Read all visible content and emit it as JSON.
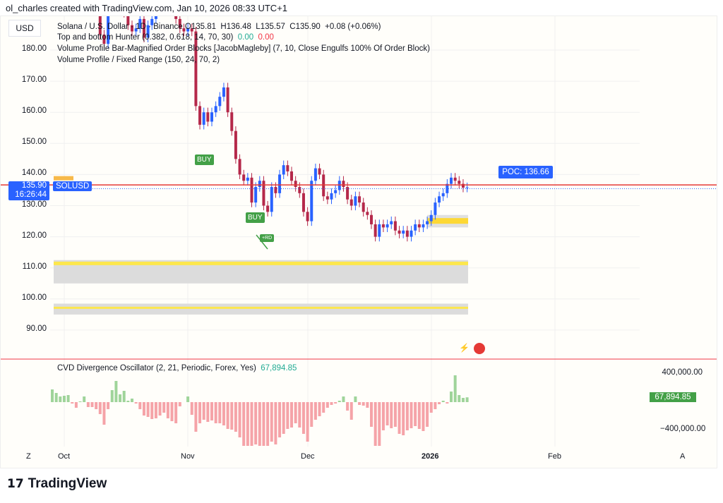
{
  "header": "ol_charles created with TradingView.com, Jan 10, 2026 08:33 UTC+1",
  "currency": "USD",
  "legend": {
    "symbol": "Solana / U.S. Dollar · 1D · Binance",
    "open": "O135.81",
    "high": "H136.48",
    "low": "L135.57",
    "close": "C135.90",
    "change": "+0.08 (+0.06%)",
    "ind1": "Top and bottom Hunter (0.382, 0.618, 14, 70, 30)",
    "ind1_v1": "0.00",
    "ind1_v2": "0.00",
    "ind2": "Volume Profile Bar-Magnified Order Blocks [JacobMagleby] (7, 10, Close Engulfs 100% Of Order Block)",
    "ind3": "Volume Profile / Fixed Range (150, 24, 70, 2)"
  },
  "price_axis": [
    "180.00",
    "170.00",
    "160.00",
    "150.00",
    "140.00",
    "130.00",
    "120.00",
    "110.00",
    "100.00",
    "90.00"
  ],
  "last_price": {
    "value": "135.90",
    "countdown": "16:26:44",
    "symbol": "SOLUSD"
  },
  "poc": {
    "label": "POC: 136.66",
    "value": 136.66
  },
  "signals": {
    "buy1": "BUY",
    "buy2": "BUY",
    "rd": "+RD"
  },
  "cvd": {
    "title": "CVD Divergence Oscillator (2, 21, Periodic, Forex, Yes)",
    "value": "67,894.85",
    "axis": [
      "400,000.00",
      "−400,000.00"
    ]
  },
  "time_axis": {
    "z": "Z",
    "labels": [
      "Oct",
      "Nov",
      "Dec",
      "2026",
      "Feb"
    ],
    "a": "A"
  },
  "brand": "TradingView",
  "colors": {
    "up": "#2962ff",
    "down": "#b5284a",
    "cvd_pos": "#9fd49a",
    "cvd_neg": "#f5a3a8",
    "poc": "#e53935"
  },
  "chart_data": {
    "type": "candlestick",
    "start_date": "2025-09-28",
    "close": [
      205,
      208,
      210,
      215,
      222,
      228,
      230,
      232,
      228,
      222,
      218,
      212,
      185,
      182,
      195,
      200,
      204,
      198,
      192,
      188,
      186,
      187,
      190,
      184,
      188,
      190,
      195,
      198,
      200,
      196,
      198,
      190,
      187,
      186,
      187,
      186,
      162,
      156,
      160,
      157,
      160,
      162,
      165,
      168,
      160,
      154,
      145,
      140,
      138,
      139,
      131,
      136,
      138,
      130,
      128,
      136,
      134,
      140,
      143,
      141,
      138,
      136,
      134,
      128,
      125,
      138,
      142,
      140,
      133,
      132,
      134,
      135,
      138,
      136,
      132,
      130,
      133,
      131,
      128,
      127,
      124,
      120,
      124,
      123,
      124,
      125,
      122,
      121,
      122,
      120,
      122,
      124,
      123,
      124,
      125,
      127,
      131,
      133,
      134,
      137,
      139,
      138,
      137,
      135.8,
      135.9
    ],
    "cvd": [
      180000,
      130000,
      80000,
      90000,
      100000,
      -20000,
      -80000,
      10000,
      80000,
      -70000,
      -70000,
      -100000,
      -170000,
      -320000,
      -100000,
      170000,
      300000,
      110000,
      160000,
      20000,
      50000,
      -20000,
      -100000,
      -190000,
      -210000,
      -240000,
      -230000,
      -190000,
      -150000,
      -230000,
      -270000,
      -300000,
      -60000,
      0,
      80000,
      -180000,
      -420000,
      -300000,
      -250000,
      -280000,
      -260000,
      -300000,
      -300000,
      -330000,
      -380000,
      -390000,
      -420000,
      -500000,
      -620000,
      -620000,
      -620000,
      -600000,
      -620000,
      -620000,
      -620000,
      -560000,
      -600000,
      -500000,
      -450000,
      -380000,
      -360000,
      -300000,
      -360000,
      -450000,
      -560000,
      -350000,
      -250000,
      -200000,
      -150000,
      -80000,
      -40000,
      -20000,
      20000,
      80000,
      -120000,
      -250000,
      80000,
      -40000,
      -50000,
      -80000,
      -350000,
      -620000,
      -620000,
      -400000,
      -330000,
      -370000,
      -350000,
      -450000,
      -470000,
      -400000,
      -370000,
      -340000,
      -380000,
      -410000,
      -350000,
      -150000,
      -100000,
      -30000,
      20000,
      -20000,
      150000,
      380000,
      100000,
      60000,
      67894.85
    ]
  }
}
